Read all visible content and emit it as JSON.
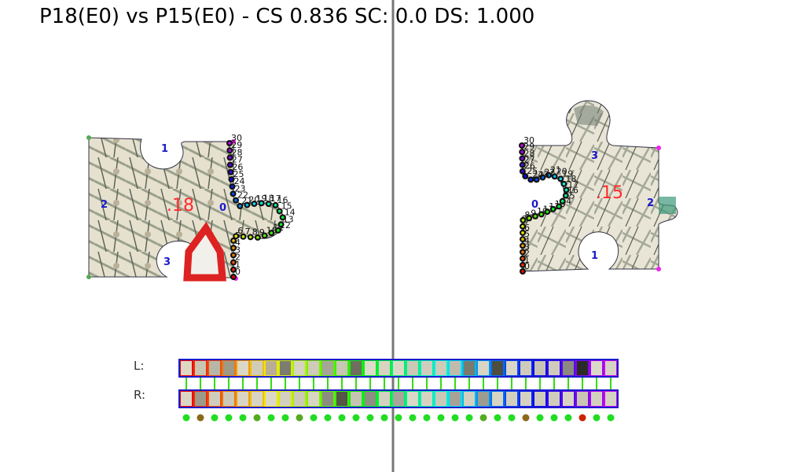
{
  "title": "P18(E0) vs P15(E0) - CS 0.836 SC: 0.0 DS: 1.000",
  "left_piece": {
    "id_label": ".18",
    "edge_labels": [
      "0",
      "1",
      "2",
      "3"
    ],
    "point_labels": [
      "0",
      "1",
      "2",
      "3",
      "4",
      "5",
      "6",
      "7",
      "8",
      "9",
      "10",
      "11",
      "12",
      "13",
      "14",
      "15",
      "16",
      "17",
      "18",
      "19",
      "20",
      "21",
      "22",
      "23",
      "24",
      "25",
      "26",
      "27",
      "28",
      "29",
      "30"
    ]
  },
  "right_piece": {
    "id_label": ".15",
    "edge_labels": [
      "0",
      "1",
      "2",
      "3"
    ],
    "point_labels": [
      "0",
      "1",
      "2",
      "3",
      "4",
      "5",
      "6",
      "7",
      "8",
      "9",
      "10",
      "11",
      "12",
      "13",
      "14",
      "15",
      "16",
      "17",
      "18",
      "19",
      "20",
      "21",
      "22",
      "23",
      "24",
      "25",
      "26",
      "27",
      "28",
      "29",
      "30"
    ]
  },
  "strip": {
    "left_label": "L:",
    "right_label": "R:",
    "left_colors": [
      "#ddd8c4",
      "#c9c5b3",
      "#b8b6a8",
      "#9e9a88",
      "#dcd8c8",
      "#d1ccb8",
      "#b9ad96",
      "#7c7c70",
      "#d6d3c2",
      "#cfcbb8",
      "#a7a597",
      "#cac6b4",
      "#6f6f60",
      "#dfdacb",
      "#d9d4c2",
      "#dcd8c8",
      "#ccc8b8",
      "#d0cdbf",
      "#cfcab9",
      "#c0bcad",
      "#7a7a6e",
      "#d8d5c4",
      "#4d4d40",
      "#dad6c6",
      "#cfcbbb",
      "#c7c3b2",
      "#cfcbba",
      "#8a8a80",
      "#2b2b25",
      "#dbd8c8",
      "#d6d3c4"
    ],
    "right_colors": [
      "#dad6c6",
      "#9e9a8a",
      "#d1cdbd",
      "#ccc8b8",
      "#d9d5c4",
      "#d8d4c3",
      "#dcd8c8",
      "#d4d0c0",
      "#cdc9b9",
      "#d9d5c4",
      "#8c8c80",
      "#555548",
      "#c8c4b4",
      "#8e8e82",
      "#d5d1c0",
      "#a9a59a",
      "#dcd8c8",
      "#d7d3c2",
      "#ccc8b8",
      "#a6a29a",
      "#d4d0c0",
      "#9c9c90",
      "#d8d4c4",
      "#d3cfbe",
      "#d6d2c2",
      "#cfcbbb",
      "#d0ccbc",
      "#d8d4c4",
      "#c9c5b5",
      "#d4d0c0",
      "#d6d2c2"
    ],
    "match_colors": [
      "#22dd22",
      "#8a6a1a",
      "#22dd22",
      "#22dd22",
      "#22dd22",
      "#55aa22",
      "#22dd22",
      "#22dd22",
      "#55aa22",
      "#22dd22",
      "#22dd22",
      "#22dd22",
      "#22dd22",
      "#22dd22",
      "#22dd22",
      "#22dd22",
      "#22dd22",
      "#22dd22",
      "#22dd22",
      "#22dd22",
      "#22dd22",
      "#55aa22",
      "#22dd22",
      "#22dd22",
      "#8a6a1a",
      "#22dd22",
      "#22dd22",
      "#22dd22",
      "#cc2200",
      "#22dd22",
      "#22dd22"
    ]
  }
}
